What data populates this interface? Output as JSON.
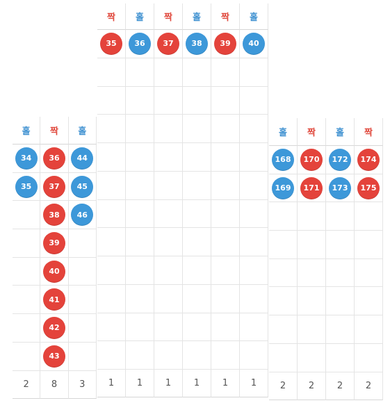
{
  "colors": {
    "odd": "#3d98d9",
    "even": "#e4433b"
  },
  "panels": [
    {
      "id": "left-panel",
      "rows": 8,
      "columns": [
        {
          "header": "홀",
          "type": "odd",
          "balls": [
            "34",
            "35"
          ],
          "count": "2"
        },
        {
          "header": "짝",
          "type": "even",
          "balls": [
            "36",
            "37",
            "38",
            "39",
            "40",
            "41",
            "42",
            "43"
          ],
          "count": "8"
        },
        {
          "header": "홀",
          "type": "odd",
          "balls": [
            "44",
            "45",
            "46"
          ],
          "count": "3"
        }
      ]
    },
    {
      "id": "center-panel",
      "rows": 12,
      "columns": [
        {
          "header": "짝",
          "type": "even",
          "balls": [
            "35"
          ],
          "count": "1"
        },
        {
          "header": "홀",
          "type": "odd",
          "balls": [
            "36"
          ],
          "count": "1"
        },
        {
          "header": "짝",
          "type": "even",
          "balls": [
            "37"
          ],
          "count": "1"
        },
        {
          "header": "홀",
          "type": "odd",
          "balls": [
            "38"
          ],
          "count": "1"
        },
        {
          "header": "짝",
          "type": "even",
          "balls": [
            "39"
          ],
          "count": "1"
        },
        {
          "header": "홀",
          "type": "odd",
          "balls": [
            "40"
          ],
          "count": "1"
        }
      ]
    },
    {
      "id": "right-panel",
      "rows": 8,
      "columns": [
        {
          "header": "홀",
          "type": "odd",
          "balls": [
            "168",
            "169"
          ],
          "count": "2"
        },
        {
          "header": "짝",
          "type": "even",
          "balls": [
            "170",
            "171"
          ],
          "count": "2"
        },
        {
          "header": "홀",
          "type": "odd",
          "balls": [
            "172",
            "173"
          ],
          "count": "2"
        },
        {
          "header": "짝",
          "type": "even",
          "balls": [
            "174",
            "175"
          ],
          "count": "2"
        }
      ]
    }
  ]
}
